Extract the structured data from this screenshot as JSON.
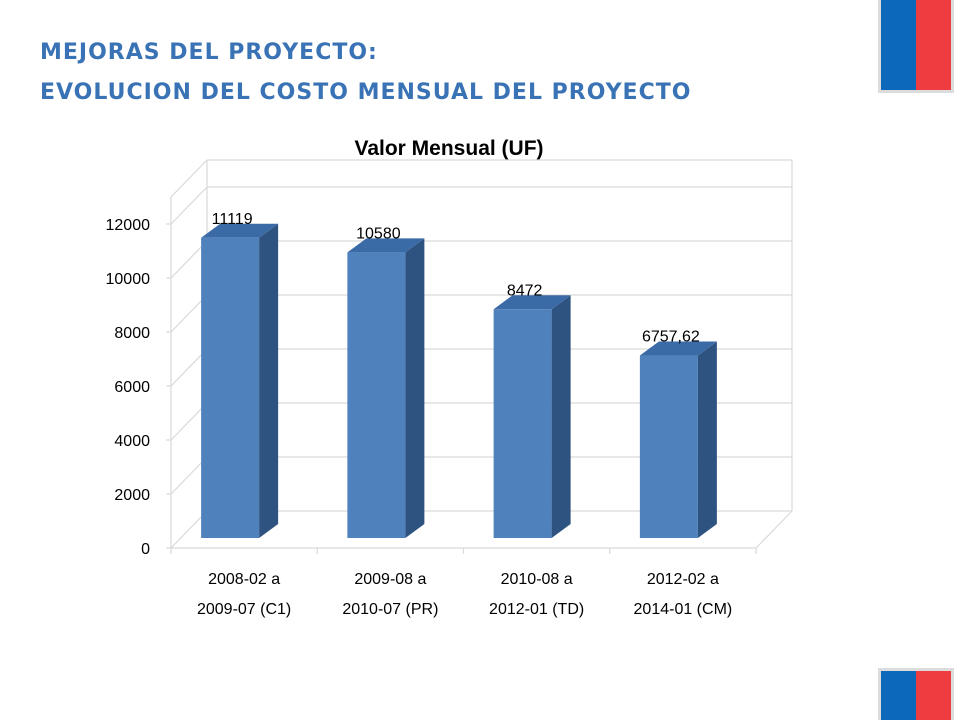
{
  "header": {
    "line1": "MEJORAS DEL PROYECTO:",
    "line2": "EVOLUCION DEL COSTO MENSUAL DEL PROYECTO"
  },
  "colors": {
    "title": "#3A73B5",
    "bar_front": "#4F81BD",
    "bar_side": "#2F5380",
    "bar_top": "#3B6BA6",
    "flag_blue": "#0B68BA",
    "flag_red": "#EE3C40"
  },
  "chart_data": {
    "type": "bar",
    "style": "3d-column",
    "title": "Valor Mensual (UF)",
    "categories": [
      [
        "2008-02 a",
        "2009-07 (C1)"
      ],
      [
        "2009-08 a",
        "2010-07 (PR)"
      ],
      [
        "2010-08 a",
        "2012-01 (TD)"
      ],
      [
        "2012-02 a",
        "2014-01 (CM)"
      ]
    ],
    "values": [
      11119,
      10580,
      8472,
      6757.62
    ],
    "data_labels": [
      "11119",
      "10580",
      "8472",
      "6757,62"
    ],
    "yticks": [
      "0",
      "2000",
      "4000",
      "6000",
      "8000",
      "10000",
      "12000"
    ],
    "ylim": [
      0,
      13000
    ],
    "grid": true,
    "legend": "none"
  }
}
